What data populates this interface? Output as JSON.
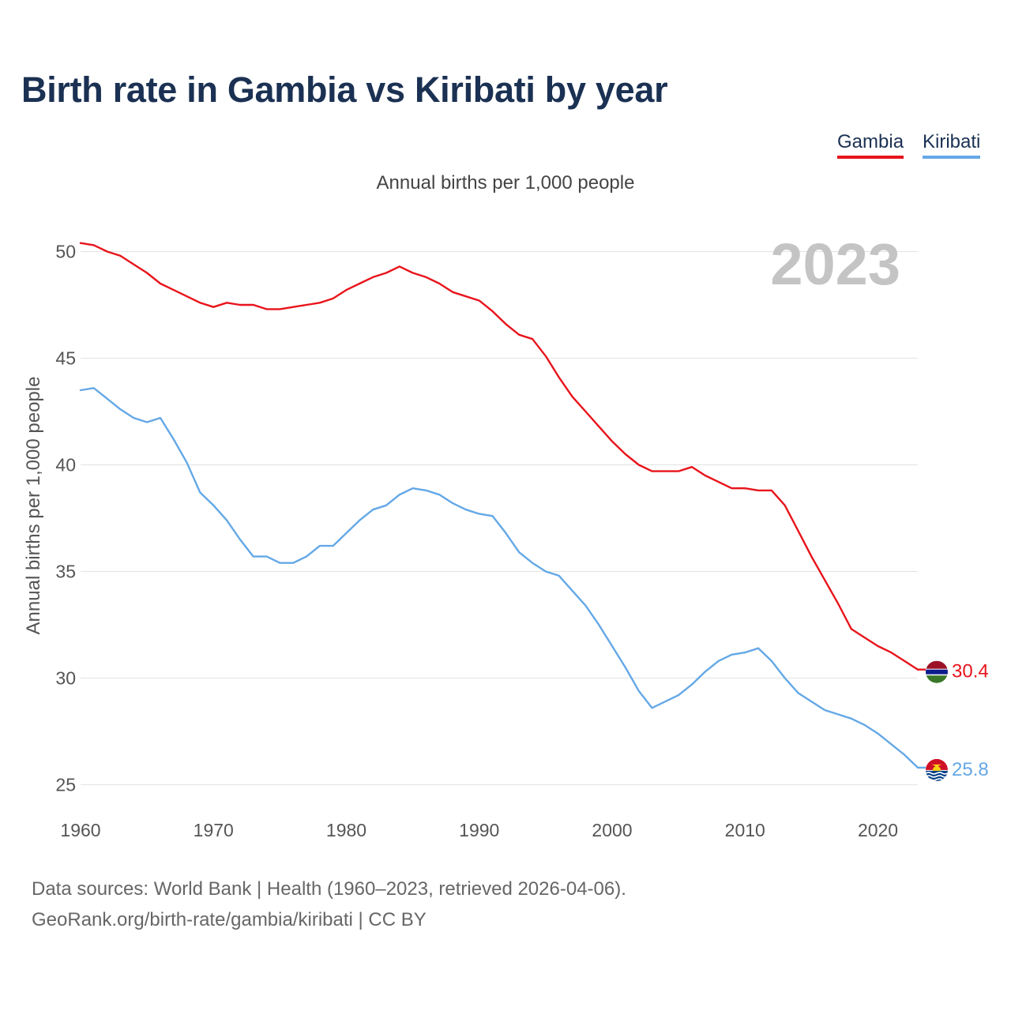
{
  "title": "Birth rate in Gambia vs Kiribati by year",
  "subtitle": "Annual births per 1,000 people",
  "year_label": "2023",
  "legend": [
    {
      "name": "Gambia",
      "color": "#e8141b"
    },
    {
      "name": "Kiribati",
      "color": "#64a8e6"
    }
  ],
  "sources": {
    "line1": "Data sources: World Bank | Health (1960–2023, retrieved 2026-04-06).",
    "line2": "GeoRank.org/birth-rate/gambia/kiribati | CC BY"
  },
  "chart_data": {
    "type": "line",
    "title": "Birth rate in Gambia vs Kiribati by year",
    "xlabel": "",
    "ylabel": "Annual births per 1,000 people",
    "xlim": [
      1960,
      2023
    ],
    "ylim": [
      24.5,
      50.5
    ],
    "xticks": [
      1960,
      1970,
      1980,
      1990,
      2000,
      2010,
      2020
    ],
    "yticks": [
      25,
      30,
      35,
      40,
      45,
      50
    ],
    "grid": true,
    "x": [
      1960,
      1961,
      1962,
      1963,
      1964,
      1965,
      1966,
      1967,
      1968,
      1969,
      1970,
      1971,
      1972,
      1973,
      1974,
      1975,
      1976,
      1977,
      1978,
      1979,
      1980,
      1981,
      1982,
      1983,
      1984,
      1985,
      1986,
      1987,
      1988,
      1989,
      1990,
      1991,
      1992,
      1993,
      1994,
      1995,
      1996,
      1997,
      1998,
      1999,
      2000,
      2001,
      2002,
      2003,
      2004,
      2005,
      2006,
      2007,
      2008,
      2009,
      2010,
      2011,
      2012,
      2013,
      2014,
      2015,
      2016,
      2017,
      2018,
      2019,
      2020,
      2021,
      2022,
      2023
    ],
    "series": [
      {
        "name": "Gambia",
        "color": "#e8141b",
        "end_label": "30.4",
        "values": [
          50.4,
          50.3,
          50.0,
          49.8,
          49.4,
          49.0,
          48.5,
          48.2,
          47.9,
          47.6,
          47.4,
          47.6,
          47.5,
          47.5,
          47.3,
          47.3,
          47.4,
          47.5,
          47.6,
          47.8,
          48.2,
          48.5,
          48.8,
          49.0,
          49.3,
          49.0,
          48.8,
          48.5,
          48.1,
          47.9,
          47.7,
          47.2,
          46.6,
          46.1,
          45.9,
          45.1,
          44.1,
          43.2,
          42.5,
          41.8,
          41.1,
          40.5,
          40.0,
          39.7,
          39.7,
          39.7,
          39.9,
          39.5,
          39.2,
          38.9,
          38.9,
          38.8,
          38.8,
          38.1,
          36.9,
          35.7,
          34.6,
          33.5,
          32.3,
          31.9,
          31.5,
          31.2,
          30.8,
          30.4
        ]
      },
      {
        "name": "Kiribati",
        "color": "#64a8e6",
        "end_label": "25.8",
        "values": [
          43.5,
          43.6,
          43.1,
          42.6,
          42.2,
          42.0,
          42.2,
          41.2,
          40.1,
          38.7,
          38.1,
          37.4,
          36.5,
          35.7,
          35.7,
          35.4,
          35.4,
          35.7,
          36.2,
          36.2,
          36.8,
          37.4,
          37.9,
          38.1,
          38.6,
          38.9,
          38.8,
          38.6,
          38.2,
          37.9,
          37.7,
          37.6,
          36.8,
          35.9,
          35.4,
          35.0,
          34.8,
          34.1,
          33.4,
          32.5,
          31.5,
          30.5,
          29.4,
          28.6,
          28.9,
          29.2,
          29.7,
          30.3,
          30.8,
          31.1,
          31.2,
          31.4,
          30.8,
          30.0,
          29.3,
          28.9,
          28.5,
          28.3,
          28.1,
          27.8,
          27.4,
          26.9,
          26.4,
          25.8
        ]
      }
    ]
  }
}
